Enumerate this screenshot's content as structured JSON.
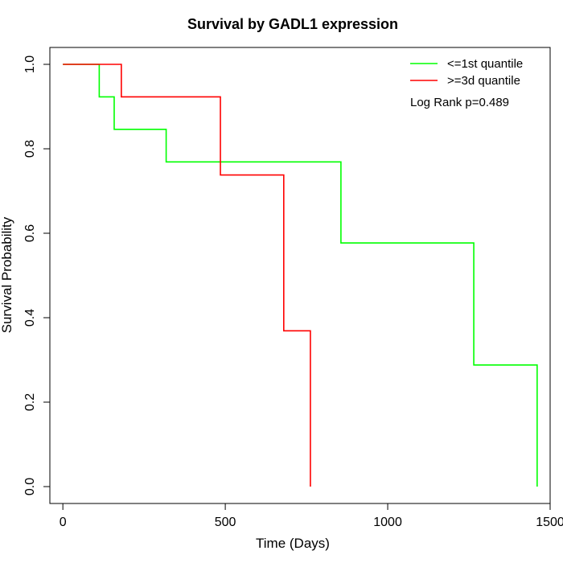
{
  "chart_data": {
    "type": "line",
    "title": "Survival by GADL1 expression",
    "xlabel": "Time (Days)",
    "ylabel": "Survival Probability",
    "xlim": [
      -40,
      1500
    ],
    "ylim": [
      -0.04,
      1.04
    ],
    "xticks": [
      0,
      500,
      1000,
      1500
    ],
    "yticks": [
      0.0,
      0.2,
      0.4,
      0.6,
      0.8,
      1.0
    ],
    "xtick_labels": [
      "0",
      "500",
      "1000",
      "1500"
    ],
    "ytick_labels": [
      "0.0",
      "0.2",
      "0.4",
      "0.6",
      "0.8",
      "1.0"
    ],
    "grid": false,
    "legend_position": "top-right",
    "annotation": "Log Rank p=0.489",
    "series": [
      {
        "name": "<=1st quantile",
        "color": "#00ff00",
        "steps": [
          {
            "x": 0,
            "y": 1.0
          },
          {
            "x": 112,
            "y": 0.923
          },
          {
            "x": 158,
            "y": 0.846
          },
          {
            "x": 318,
            "y": 0.769
          },
          {
            "x": 856,
            "y": 0.577
          },
          {
            "x": 1265,
            "y": 0.288
          },
          {
            "x": 1460,
            "y": 0.0
          }
        ],
        "end_x": 1460
      },
      {
        "name": ">=3d quantile",
        "color": "#ff0000",
        "steps": [
          {
            "x": 0,
            "y": 1.0
          },
          {
            "x": 180,
            "y": 0.923
          },
          {
            "x": 485,
            "y": 0.738
          },
          {
            "x": 680,
            "y": 0.369
          },
          {
            "x": 762,
            "y": 0.0
          }
        ],
        "end_x": 762
      }
    ]
  }
}
